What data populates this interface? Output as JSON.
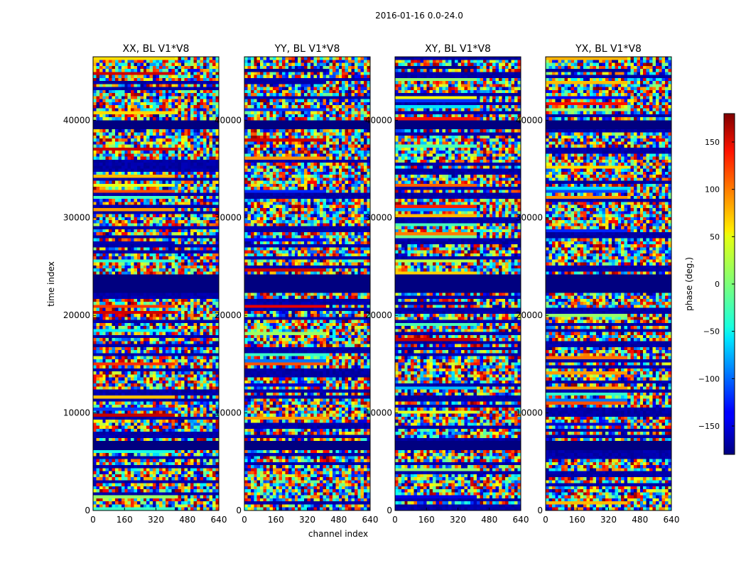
{
  "chart_data": {
    "type": "heatmap",
    "figure_title": "2016-01-16 0.0-24.0",
    "xlabel": "channel index",
    "ylabel": "time index",
    "xlim": [
      0,
      640
    ],
    "ylim": [
      0,
      46500
    ],
    "x_ticks": [
      0,
      160,
      320,
      480,
      640
    ],
    "y_ticks": [
      0,
      10000,
      20000,
      30000,
      40000
    ],
    "panels": [
      {
        "title": "XX, BL V1*V8",
        "ramp_channel": 400
      },
      {
        "title": "YY, BL V1*V8",
        "ramp_channel": 400
      },
      {
        "title": "XY, BL V1*V8",
        "ramp_channel": 400
      },
      {
        "title": "YX, BL V1*V8",
        "ramp_channel": 400
      }
    ],
    "colorbar": {
      "label": "phase (deg.)",
      "range": [
        -180,
        180
      ],
      "ticks": [
        -150,
        -100,
        -50,
        0,
        50,
        100,
        150
      ],
      "colormap": "jet"
    },
    "masked_time_ranges": [
      [
        6300,
        7200
      ],
      [
        22300,
        24300
      ],
      [
        39000,
        40000
      ]
    ],
    "colors": {
      "masked": "#00007f",
      "axes": "#000000",
      "background": "#ffffff"
    }
  }
}
